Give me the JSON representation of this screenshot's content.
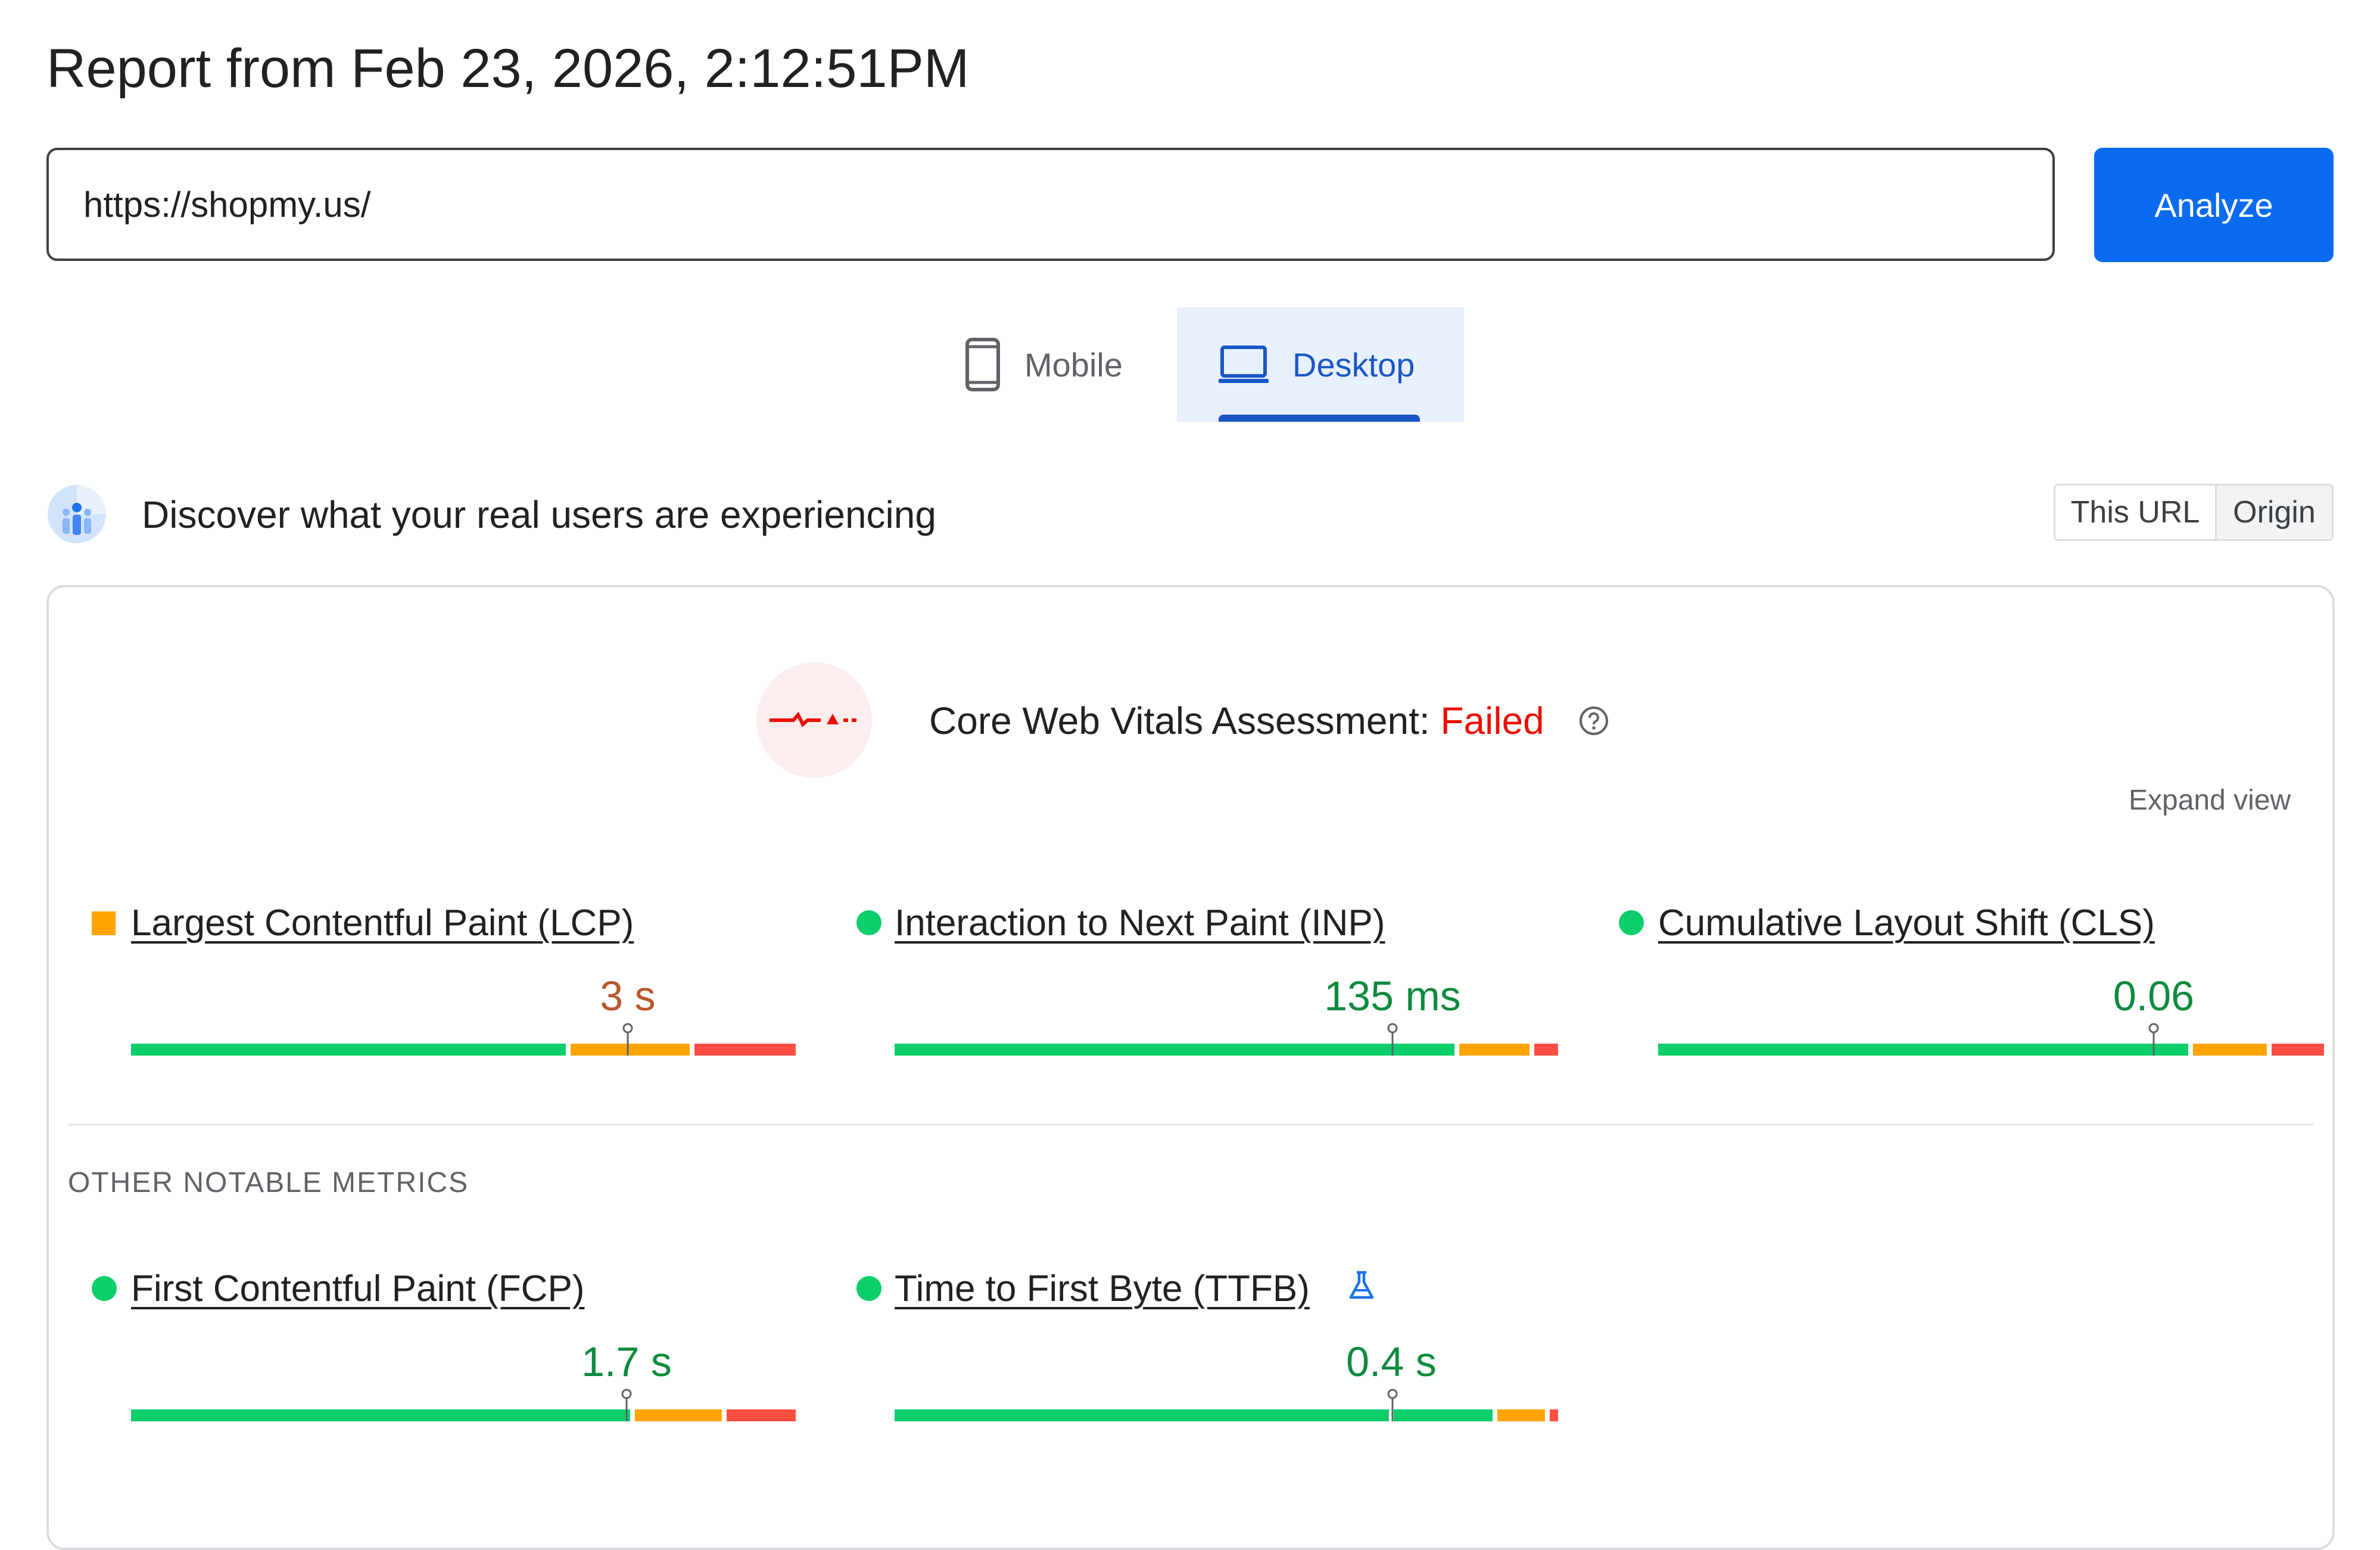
{
  "report": {
    "title": "Report from Feb 23, 2026, 2:12:51PM"
  },
  "search": {
    "url": "https://shopmy.us/",
    "analyze_label": "Analyze"
  },
  "tabs": [
    {
      "label": "Mobile",
      "active": false,
      "icon": "mobile-phone-icon"
    },
    {
      "label": "Desktop",
      "active": true,
      "icon": "laptop-icon"
    }
  ],
  "field_data": {
    "title": "Discover what your real users are experiencing",
    "toggle": {
      "options": [
        "This URL",
        "Origin"
      ],
      "selected": "Origin"
    }
  },
  "assessment": {
    "prefix": "Core Web Vitals Assessment:",
    "status": "Failed",
    "expand_label": "Expand view"
  },
  "core_metrics": [
    {
      "name": "Largest Contentful Paint (LCP)",
      "value": "3 s",
      "rating": "needs-improvement"
    },
    {
      "name": "Interaction to Next Paint (INP)",
      "value": "135 ms",
      "rating": "good"
    },
    {
      "name": "Cumulative Layout Shift (CLS)",
      "value": "0.06",
      "rating": "good"
    }
  ],
  "other_metrics": {
    "heading": "OTHER NOTABLE METRICS",
    "items": [
      {
        "name": "First Contentful Paint (FCP)",
        "value": "1.7 s",
        "rating": "good"
      },
      {
        "name": "Time to First Byte (TTFB)",
        "value": "0.4 s",
        "rating": "good",
        "experimental": true
      }
    ]
  },
  "colors": {
    "good": "#0cce6b",
    "needs_improvement": "#ffa400",
    "poor": "#ff4e42",
    "accent": "#0b6bf0",
    "failed": "#eb0f00"
  }
}
